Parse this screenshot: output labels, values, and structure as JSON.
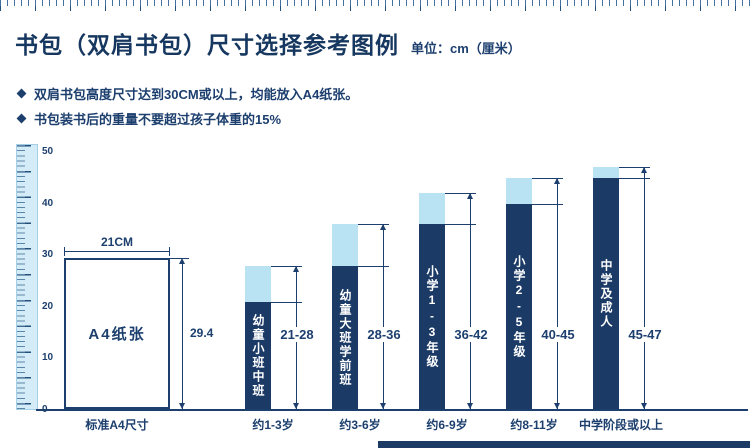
{
  "page": {
    "title": "书包（双肩书包）尺寸选择参考图例",
    "unit_label": "单位：cm（厘米）",
    "bullets": [
      "双肩书包高度尺寸达到30CM或以上，均能放入A4纸张。",
      "书包装书后的重量不要超过孩子体重的15%"
    ]
  },
  "colors": {
    "navy": "#1c3f6e",
    "bar_dark": "#1b3a66",
    "bar_light": "#b9e2f3",
    "ruler_bg": "#d4ecf8"
  },
  "chart_data": {
    "type": "bar",
    "title": "书包（双肩书包）尺寸选择参考图例",
    "unit": "cm",
    "ylabel": "",
    "xlabel": "",
    "ylim": [
      0,
      50
    ],
    "yticks": [
      0,
      10,
      20,
      30,
      40,
      50
    ],
    "grid": false,
    "legend": "none",
    "a4": {
      "label": "A4纸张",
      "width_label": "21CM",
      "height_value": 29.4,
      "height_label": "29.4",
      "bottom_label": "标准A4尺寸"
    },
    "bars": [
      {
        "name": "幼童小班中班",
        "min": 21,
        "max": 28,
        "range_label": "21-28",
        "age_label": "约1-3岁"
      },
      {
        "name": "幼童大班学前班",
        "min": 28,
        "max": 36,
        "range_label": "28-36",
        "age_label": "约3-6岁"
      },
      {
        "name": "小学1-3年级",
        "min": 36,
        "max": 42,
        "range_label": "36-42",
        "age_label": "约6-9岁"
      },
      {
        "name": "小学2-5年级",
        "min": 40,
        "max": 45,
        "range_label": "40-45",
        "age_label": "约8-11岁"
      },
      {
        "name": "中学及成人",
        "min": 45,
        "max": 47,
        "range_label": "45-47",
        "age_label": "中学阶段或以上"
      }
    ]
  }
}
